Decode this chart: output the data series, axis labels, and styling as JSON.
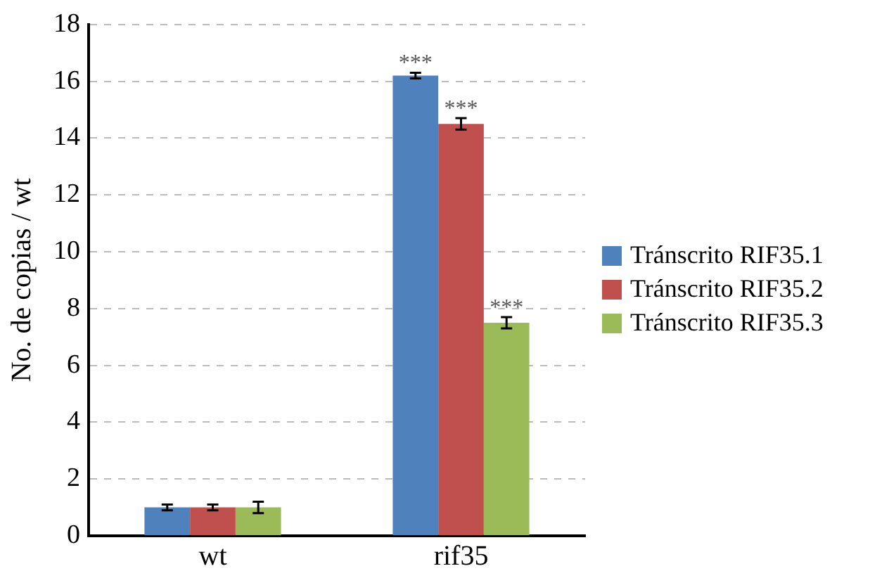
{
  "chart_data": {
    "type": "bar",
    "ylabel": "No. de copias / wt",
    "categories": [
      "wt",
      "rif35"
    ],
    "series": [
      {
        "name": "Tránscrito RIF35.1",
        "color": "#4f81bd",
        "values": [
          1.0,
          16.2
        ],
        "errors": [
          0.1,
          0.1
        ]
      },
      {
        "name": "Tránscrito RIF35.2",
        "color": "#c0504d",
        "values": [
          1.0,
          14.5
        ],
        "errors": [
          0.1,
          0.2
        ]
      },
      {
        "name": "Tránscrito RIF35.3",
        "color": "#9bbb59",
        "values": [
          1.0,
          7.5
        ],
        "errors": [
          0.2,
          0.2
        ]
      }
    ],
    "ylim": [
      0,
      18
    ],
    "yticks": [
      0,
      2,
      4,
      6,
      8,
      10,
      12,
      14,
      16,
      18
    ],
    "grid": "y",
    "legend": "right",
    "annotations": [
      "***",
      "***",
      "***"
    ]
  }
}
